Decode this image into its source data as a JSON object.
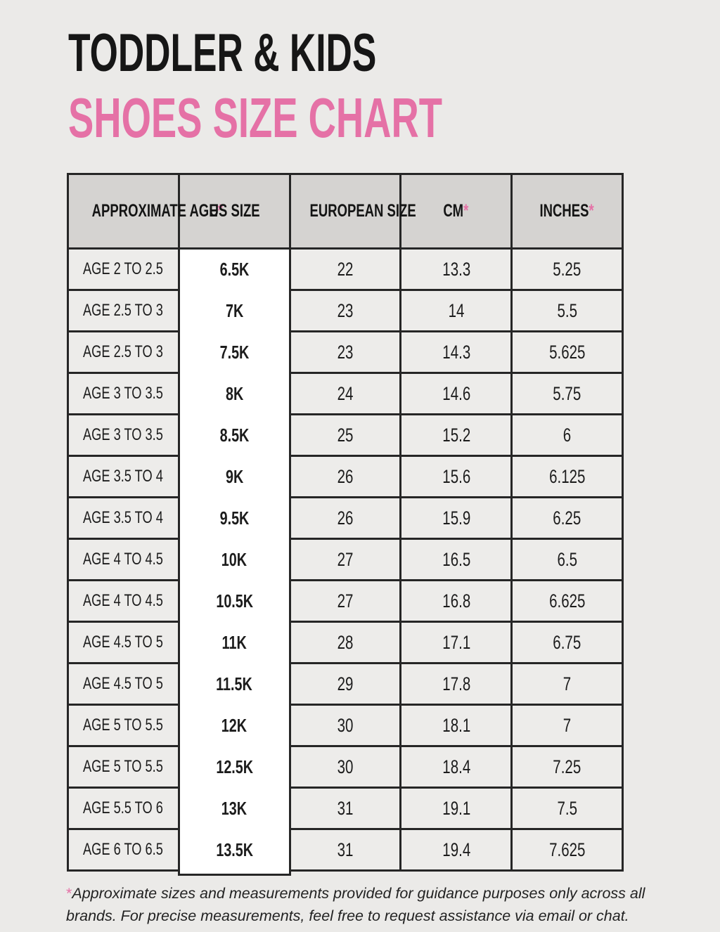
{
  "page": {
    "background": "#ebeae8",
    "accent_pink": "#e571a6",
    "border_color": "#262626",
    "header_cell_bg": "#d5d3d1",
    "data_cell_bg": "#edecea",
    "us_column_bg": "#ffffff"
  },
  "title": {
    "line1": "TODDLER & KIDS",
    "line2": "SHOES SIZE CHART"
  },
  "table": {
    "headers": [
      {
        "label": "APPROXIMATE AGE",
        "asterisk": "*"
      },
      {
        "label": "US SIZE",
        "asterisk": ""
      },
      {
        "label": "EUROPEAN SIZE",
        "asterisk": ""
      },
      {
        "label": "CM",
        "asterisk": "*"
      },
      {
        "label": "INCHES",
        "asterisk": "*"
      }
    ],
    "column_names": [
      "age",
      "us-size",
      "european-size",
      "cm",
      "inches"
    ]
  },
  "chart_data": {
    "type": "table",
    "title": "TODDLER & KIDS SHOES SIZE CHART",
    "columns": [
      "APPROXIMATE AGE*",
      "US SIZE",
      "EUROPEAN SIZE",
      "CM*",
      "INCHES*"
    ],
    "rows": [
      [
        "AGE 2 TO 2.5",
        "6.5K",
        "22",
        "13.3",
        "5.25"
      ],
      [
        "AGE 2.5 TO 3",
        "7K",
        "23",
        "14",
        "5.5"
      ],
      [
        "AGE 2.5 TO 3",
        "7.5K",
        "23",
        "14.3",
        "5.625"
      ],
      [
        "AGE 3 TO 3.5",
        "8K",
        "24",
        "14.6",
        "5.75"
      ],
      [
        "AGE 3 TO 3.5",
        "8.5K",
        "25",
        "15.2",
        "6"
      ],
      [
        "AGE 3.5 TO 4",
        "9K",
        "26",
        "15.6",
        "6.125"
      ],
      [
        "AGE 3.5 TO 4",
        "9.5K",
        "26",
        "15.9",
        "6.25"
      ],
      [
        "AGE 4 TO 4.5",
        "10K",
        "27",
        "16.5",
        "6.5"
      ],
      [
        "AGE 4 TO 4.5",
        "10.5K",
        "27",
        "16.8",
        "6.625"
      ],
      [
        "AGE 4.5 TO 5",
        "11K",
        "28",
        "17.1",
        "6.75"
      ],
      [
        "AGE 4.5 TO 5",
        "11.5K",
        "29",
        "17.8",
        "7"
      ],
      [
        "AGE 5 TO 5.5",
        "12K",
        "30",
        "18.1",
        "7"
      ],
      [
        "AGE 5 TO 5.5",
        "12.5K",
        "30",
        "18.4",
        "7.25"
      ],
      [
        "AGE 5.5 TO 6",
        "13K",
        "31",
        "19.1",
        "7.5"
      ],
      [
        "AGE 6 TO 6.5",
        "13.5K",
        "31",
        "19.4",
        "7.625"
      ]
    ]
  },
  "footnote": {
    "asterisk": "*",
    "text": "Approximate sizes and measurements provided for guidance purposes only across all brands. For precise measurements, feel free to request assistance via email or chat."
  }
}
